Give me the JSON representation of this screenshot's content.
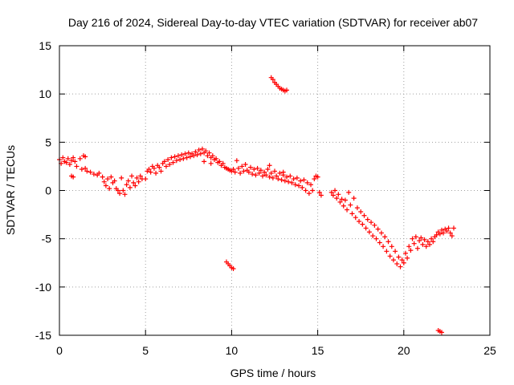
{
  "chart_data": {
    "type": "scatter",
    "title": "Day 216 of 2024, Sidereal Day-to-day VTEC variation (SDTVAR) for receiver ab07",
    "xlabel": "GPS time / hours",
    "ylabel": "SDTVAR / TECUs",
    "xlim": [
      0,
      25
    ],
    "ylim": [
      -15,
      15
    ],
    "x_ticks": [
      0,
      5,
      10,
      15,
      20,
      25
    ],
    "y_ticks": [
      -15,
      -10,
      -5,
      0,
      5,
      10,
      15
    ],
    "x_tick_labels": [
      "0",
      "5",
      "10",
      "15",
      "20",
      "25"
    ],
    "y_tick_labels": [
      "-15",
      "-10",
      "-5",
      "0",
      "5",
      "10",
      "15"
    ],
    "grid": true,
    "marker": "+",
    "color": "#ff0000",
    "series": [
      {
        "name": "SDTVAR",
        "points": [
          [
            0.0,
            3.2
          ],
          [
            0.1,
            2.8
          ],
          [
            0.2,
            3.4
          ],
          [
            0.3,
            3.0
          ],
          [
            0.4,
            2.9
          ],
          [
            0.5,
            3.3
          ],
          [
            0.6,
            2.7
          ],
          [
            0.7,
            3.1
          ],
          [
            0.8,
            3.4
          ],
          [
            0.9,
            3.0
          ],
          [
            0.7,
            1.5
          ],
          [
            0.8,
            1.4
          ],
          [
            1.0,
            2.5
          ],
          [
            1.2,
            3.3
          ],
          [
            1.4,
            3.6
          ],
          [
            1.5,
            3.5
          ],
          [
            1.3,
            2.2
          ],
          [
            1.5,
            2.3
          ],
          [
            1.6,
            2.0
          ],
          [
            1.8,
            1.9
          ],
          [
            2.0,
            1.7
          ],
          [
            2.2,
            1.6
          ],
          [
            2.3,
            1.8
          ],
          [
            2.5,
            1.4
          ],
          [
            2.6,
            0.9
          ],
          [
            2.7,
            0.5
          ],
          [
            2.8,
            1.2
          ],
          [
            2.9,
            0.2
          ],
          [
            3.0,
            1.4
          ],
          [
            3.1,
            0.8
          ],
          [
            3.2,
            1.0
          ],
          [
            3.3,
            0.2
          ],
          [
            3.4,
            0.0
          ],
          [
            3.5,
            -0.3
          ],
          [
            3.6,
            1.3
          ],
          [
            3.7,
            0.0
          ],
          [
            3.8,
            -0.4
          ],
          [
            3.9,
            0.6
          ],
          [
            4.0,
            1.0
          ],
          [
            4.1,
            0.3
          ],
          [
            4.2,
            1.5
          ],
          [
            4.3,
            0.8
          ],
          [
            4.4,
            0.5
          ],
          [
            4.5,
            1.3
          ],
          [
            4.6,
            0.9
          ],
          [
            4.7,
            1.5
          ],
          [
            4.8,
            1.2
          ],
          [
            5.0,
            1.2
          ],
          [
            5.1,
            2.0
          ],
          [
            5.2,
            2.2
          ],
          [
            5.3,
            1.9
          ],
          [
            5.4,
            2.5
          ],
          [
            5.5,
            2.3
          ],
          [
            5.6,
            1.8
          ],
          [
            5.7,
            2.6
          ],
          [
            5.8,
            2.4
          ],
          [
            5.9,
            2.0
          ],
          [
            6.0,
            2.8
          ],
          [
            6.1,
            3.0
          ],
          [
            6.2,
            2.5
          ],
          [
            6.3,
            3.2
          ],
          [
            6.4,
            2.7
          ],
          [
            6.5,
            3.4
          ],
          [
            6.6,
            2.9
          ],
          [
            6.7,
            3.5
          ],
          [
            6.8,
            3.1
          ],
          [
            6.9,
            3.6
          ],
          [
            7.0,
            3.2
          ],
          [
            7.1,
            3.7
          ],
          [
            7.2,
            3.3
          ],
          [
            7.3,
            3.8
          ],
          [
            7.4,
            3.4
          ],
          [
            7.5,
            3.9
          ],
          [
            7.6,
            3.5
          ],
          [
            7.7,
            3.8
          ],
          [
            7.8,
            3.6
          ],
          [
            7.9,
            4.0
          ],
          [
            8.0,
            3.7
          ],
          [
            8.1,
            4.2
          ],
          [
            8.2,
            3.8
          ],
          [
            8.3,
            4.3
          ],
          [
            8.4,
            3.9
          ],
          [
            8.5,
            4.1
          ],
          [
            8.6,
            3.6
          ],
          [
            8.7,
            3.9
          ],
          [
            8.8,
            3.4
          ],
          [
            8.9,
            3.6
          ],
          [
            9.0,
            3.2
          ],
          [
            9.1,
            3.3
          ],
          [
            9.2,
            2.9
          ],
          [
            9.3,
            3.0
          ],
          [
            9.4,
            2.6
          ],
          [
            9.5,
            2.8
          ],
          [
            9.6,
            2.4
          ],
          [
            9.7,
            2.3
          ],
          [
            9.8,
            2.2
          ],
          [
            9.9,
            2.1
          ],
          [
            10.0,
            2.0
          ],
          [
            10.1,
            2.2
          ],
          [
            10.2,
            1.9
          ],
          [
            10.4,
            2.3
          ],
          [
            10.5,
            1.8
          ],
          [
            10.6,
            2.5
          ],
          [
            10.7,
            2.0
          ],
          [
            10.8,
            2.7
          ],
          [
            10.9,
            2.1
          ],
          [
            11.0,
            1.9
          ],
          [
            11.1,
            2.4
          ],
          [
            11.2,
            1.7
          ],
          [
            11.3,
            2.2
          ],
          [
            11.4,
            1.6
          ],
          [
            11.5,
            2.3
          ],
          [
            11.6,
            1.8
          ],
          [
            11.7,
            2.1
          ],
          [
            11.8,
            1.5
          ],
          [
            11.9,
            1.9
          ],
          [
            12.0,
            1.6
          ],
          [
            12.1,
            2.2
          ],
          [
            12.2,
            1.4
          ],
          [
            12.3,
            1.8
          ],
          [
            12.4,
            1.3
          ],
          [
            12.5,
            2.0
          ],
          [
            12.6,
            1.5
          ],
          [
            12.7,
            1.2
          ],
          [
            12.8,
            1.8
          ],
          [
            12.9,
            1.1
          ],
          [
            13.0,
            1.6
          ],
          [
            13.1,
            1.0
          ],
          [
            13.2,
            1.4
          ],
          [
            13.3,
            0.9
          ],
          [
            13.4,
            1.5
          ],
          [
            13.5,
            0.8
          ],
          [
            13.6,
            1.2
          ],
          [
            13.7,
            0.6
          ],
          [
            13.8,
            1.3
          ],
          [
            13.9,
            0.5
          ],
          [
            14.0,
            1.0
          ],
          [
            14.1,
            0.3
          ],
          [
            14.2,
            1.1
          ],
          [
            14.3,
            0.0
          ],
          [
            14.4,
            0.8
          ],
          [
            14.5,
            -0.3
          ],
          [
            14.6,
            0.6
          ],
          [
            14.7,
            0.0
          ],
          [
            14.8,
            1.2
          ],
          [
            14.9,
            1.5
          ],
          [
            15.0,
            1.4
          ],
          [
            15.1,
            -0.2
          ],
          [
            15.2,
            -0.5
          ],
          [
            8.4,
            3.0
          ],
          [
            8.8,
            2.8
          ],
          [
            12.2,
            2.6
          ],
          [
            13.0,
            1.9
          ],
          [
            10.3,
            3.1
          ],
          [
            15.8,
            -0.2
          ],
          [
            15.9,
            -0.5
          ],
          [
            16.0,
            0.0
          ],
          [
            16.1,
            -0.8
          ],
          [
            16.2,
            -0.4
          ],
          [
            16.3,
            -1.2
          ],
          [
            16.4,
            -0.9
          ],
          [
            16.5,
            -1.6
          ],
          [
            16.6,
            -1.0
          ],
          [
            16.7,
            -2.0
          ],
          [
            16.8,
            -0.2
          ],
          [
            16.9,
            -1.5
          ],
          [
            17.0,
            -2.4
          ],
          [
            17.1,
            -0.8
          ],
          [
            17.2,
            -2.8
          ],
          [
            17.3,
            -1.8
          ],
          [
            17.4,
            -3.2
          ],
          [
            17.5,
            -2.2
          ],
          [
            17.6,
            -3.5
          ],
          [
            17.7,
            -2.6
          ],
          [
            17.8,
            -3.9
          ],
          [
            17.9,
            -3.0
          ],
          [
            18.0,
            -4.3
          ],
          [
            18.1,
            -3.3
          ],
          [
            18.2,
            -4.7
          ],
          [
            18.3,
            -3.6
          ],
          [
            18.4,
            -5.0
          ],
          [
            18.5,
            -4.0
          ],
          [
            18.6,
            -5.4
          ],
          [
            18.7,
            -4.4
          ],
          [
            18.8,
            -5.8
          ],
          [
            18.9,
            -4.8
          ],
          [
            19.0,
            -6.3
          ],
          [
            19.1,
            -5.3
          ],
          [
            19.2,
            -6.8
          ],
          [
            19.3,
            -5.8
          ],
          [
            19.4,
            -7.2
          ],
          [
            19.5,
            -6.3
          ],
          [
            19.6,
            -7.6
          ],
          [
            19.7,
            -6.9
          ],
          [
            19.8,
            -7.9
          ],
          [
            19.9,
            -7.2
          ],
          [
            20.0,
            -7.5
          ],
          [
            20.1,
            -6.5
          ],
          [
            20.2,
            -7.0
          ],
          [
            20.3,
            -5.8
          ],
          [
            20.4,
            -6.2
          ],
          [
            20.5,
            -5.0
          ],
          [
            20.6,
            -5.5
          ],
          [
            20.7,
            -4.8
          ],
          [
            20.8,
            -6.0
          ],
          [
            20.9,
            -5.2
          ],
          [
            21.0,
            -4.9
          ],
          [
            21.1,
            -5.6
          ],
          [
            21.2,
            -5.1
          ],
          [
            21.3,
            -5.8
          ],
          [
            21.4,
            -5.3
          ],
          [
            21.5,
            -5.6
          ],
          [
            21.6,
            -5.0
          ],
          [
            21.7,
            -5.3
          ],
          [
            21.8,
            -4.8
          ],
          [
            21.9,
            -4.6
          ],
          [
            22.0,
            -4.3
          ],
          [
            22.1,
            -4.5
          ],
          [
            22.2,
            -4.1
          ],
          [
            22.3,
            -4.4
          ],
          [
            22.4,
            -4.0
          ],
          [
            22.5,
            -4.2
          ],
          [
            22.6,
            -3.9
          ],
          [
            22.7,
            -4.4
          ],
          [
            22.8,
            -4.7
          ],
          [
            22.9,
            -3.9
          ],
          [
            12.3,
            11.7
          ],
          [
            12.4,
            11.5
          ],
          [
            12.5,
            11.2
          ],
          [
            12.6,
            11.0
          ],
          [
            12.7,
            10.8
          ],
          [
            12.8,
            10.6
          ],
          [
            12.9,
            10.5
          ],
          [
            13.0,
            10.4
          ],
          [
            13.1,
            10.3
          ],
          [
            13.2,
            10.4
          ],
          [
            9.7,
            -7.4
          ],
          [
            9.8,
            -7.6
          ],
          [
            9.9,
            -7.8
          ],
          [
            10.0,
            -8.0
          ],
          [
            10.1,
            -8.1
          ],
          [
            22.0,
            -14.5
          ],
          [
            22.1,
            -14.6
          ],
          [
            22.2,
            -14.7
          ]
        ]
      }
    ]
  }
}
